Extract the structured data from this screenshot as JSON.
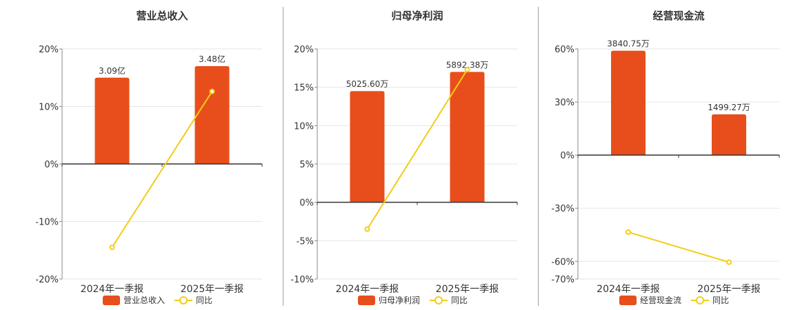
{
  "colors": {
    "bar": "#e84e1b",
    "line": "#f3cc14",
    "grid": "#e6e6e6",
    "axis": "#333333",
    "text": "#333333",
    "divider": "#9e9e9e"
  },
  "legend": {
    "line_label": "同比"
  },
  "chart_data": [
    {
      "type": "bar",
      "title": "营业总收入",
      "categories": [
        "2024年一季报",
        "2025年一季报"
      ],
      "bar_labels": [
        "3.09亿",
        "3.48亿"
      ],
      "series": [
        {
          "name": "营业总收入",
          "type": "bar",
          "values": [
            15.0,
            17.0
          ]
        },
        {
          "name": "同比",
          "type": "line",
          "values": [
            -14.5,
            12.6
          ]
        }
      ],
      "ylim": [
        -20,
        20
      ],
      "yticks": [
        20,
        10,
        0,
        -10,
        -20
      ],
      "ytick_labels": [
        "20%",
        "10%",
        "0%",
        "-10%",
        "-20%"
      ],
      "grid": true,
      "legend_position": "bottom"
    },
    {
      "type": "bar",
      "title": "归母净利润",
      "categories": [
        "2024年一季报",
        "2025年一季报"
      ],
      "bar_labels": [
        "5025.60万",
        "5892.38万"
      ],
      "series": [
        {
          "name": "归母净利润",
          "type": "bar",
          "values": [
            14.5,
            17.0
          ]
        },
        {
          "name": "同比",
          "type": "line",
          "values": [
            -3.5,
            17.3
          ]
        }
      ],
      "ylim": [
        -10,
        20
      ],
      "yticks": [
        20,
        15,
        10,
        5,
        0,
        -5,
        -10
      ],
      "ytick_labels": [
        "20%",
        "15%",
        "10%",
        "5%",
        "0%",
        "-5%",
        "-10%"
      ],
      "grid": true,
      "legend_position": "bottom"
    },
    {
      "type": "bar",
      "title": "经营现金流",
      "categories": [
        "2024年一季报",
        "2025年一季报"
      ],
      "bar_labels": [
        "3840.75万",
        "1499.27万"
      ],
      "series": [
        {
          "name": "经营现金流",
          "type": "bar",
          "values": [
            59.0,
            23.0
          ]
        },
        {
          "name": "同比",
          "type": "line",
          "values": [
            -43.5,
            -60.5
          ]
        }
      ],
      "ylim": [
        -70,
        60
      ],
      "yticks": [
        60,
        30,
        0,
        -30,
        -60,
        -70
      ],
      "ytick_labels": [
        "60%",
        "30%",
        "0%",
        "-30%",
        "-60%",
        "-70%"
      ],
      "grid": true,
      "legend_position": "bottom"
    }
  ]
}
